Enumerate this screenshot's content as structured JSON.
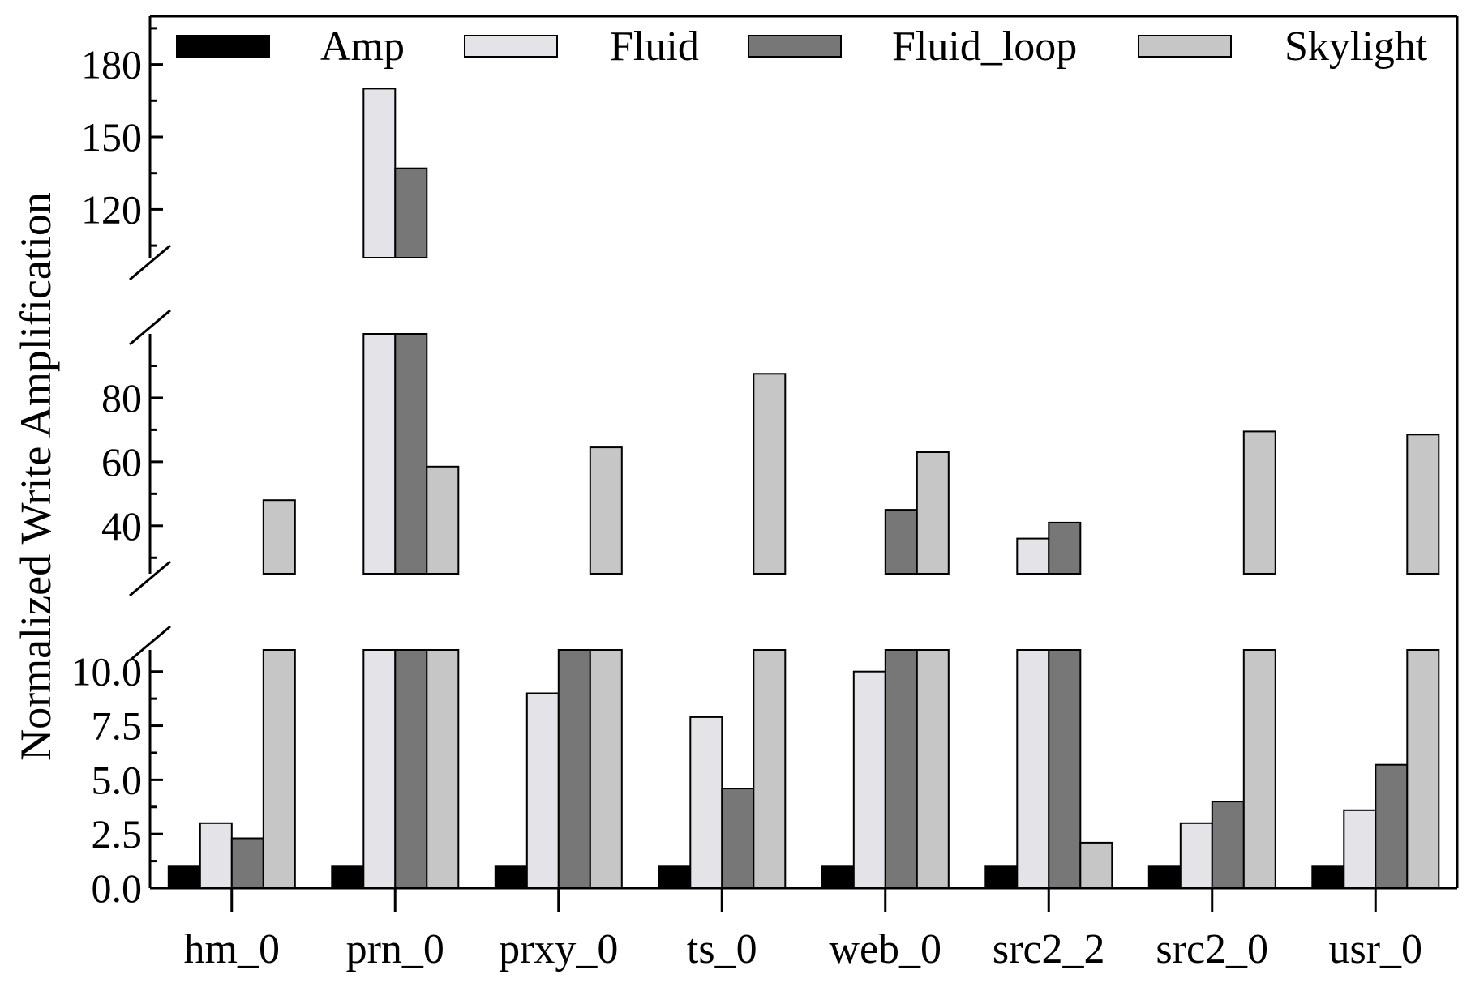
{
  "chart_data": {
    "type": "bar",
    "title": "",
    "xlabel": "",
    "ylabel": "Normalized Write Amplification",
    "categories": [
      "hm_0",
      "prn_0",
      "prxy_0",
      "ts_0",
      "web_0",
      "src2_2",
      "src2_0",
      "usr_0"
    ],
    "series": [
      {
        "name": "Amp",
        "color": "#000000",
        "values": [
          1,
          1,
          1,
          1,
          1,
          1,
          1,
          1
        ]
      },
      {
        "name": "Fluid",
        "color": "#e4e4e8",
        "values": [
          3,
          170,
          9,
          7.9,
          10,
          36,
          3,
          3.6
        ]
      },
      {
        "name": "Fluid_loop",
        "color": "#777777",
        "values": [
          2.3,
          137,
          11,
          4.6,
          45,
          41,
          4,
          5.7
        ]
      },
      {
        "name": "Skylight",
        "color": "#c6c6c6",
        "values": [
          48,
          58.5,
          64.5,
          87.5,
          63,
          2.1,
          69.5,
          68.5
        ]
      }
    ],
    "broken_axis_segments": [
      {
        "range": [
          0,
          11
        ],
        "ticks": [
          "0.0",
          "2.5",
          "5.0",
          "7.5",
          "10.0"
        ],
        "tick_values": [
          0,
          2.5,
          5,
          7.5,
          10
        ]
      },
      {
        "range": [
          25,
          100
        ],
        "ticks": [
          "40",
          "60",
          "80"
        ],
        "tick_values": [
          40,
          60,
          80
        ]
      },
      {
        "range": [
          100,
          200
        ],
        "ticks": [
          "120",
          "150",
          "180"
        ],
        "tick_values": [
          120,
          150,
          180
        ]
      }
    ],
    "legend_position": "top"
  }
}
